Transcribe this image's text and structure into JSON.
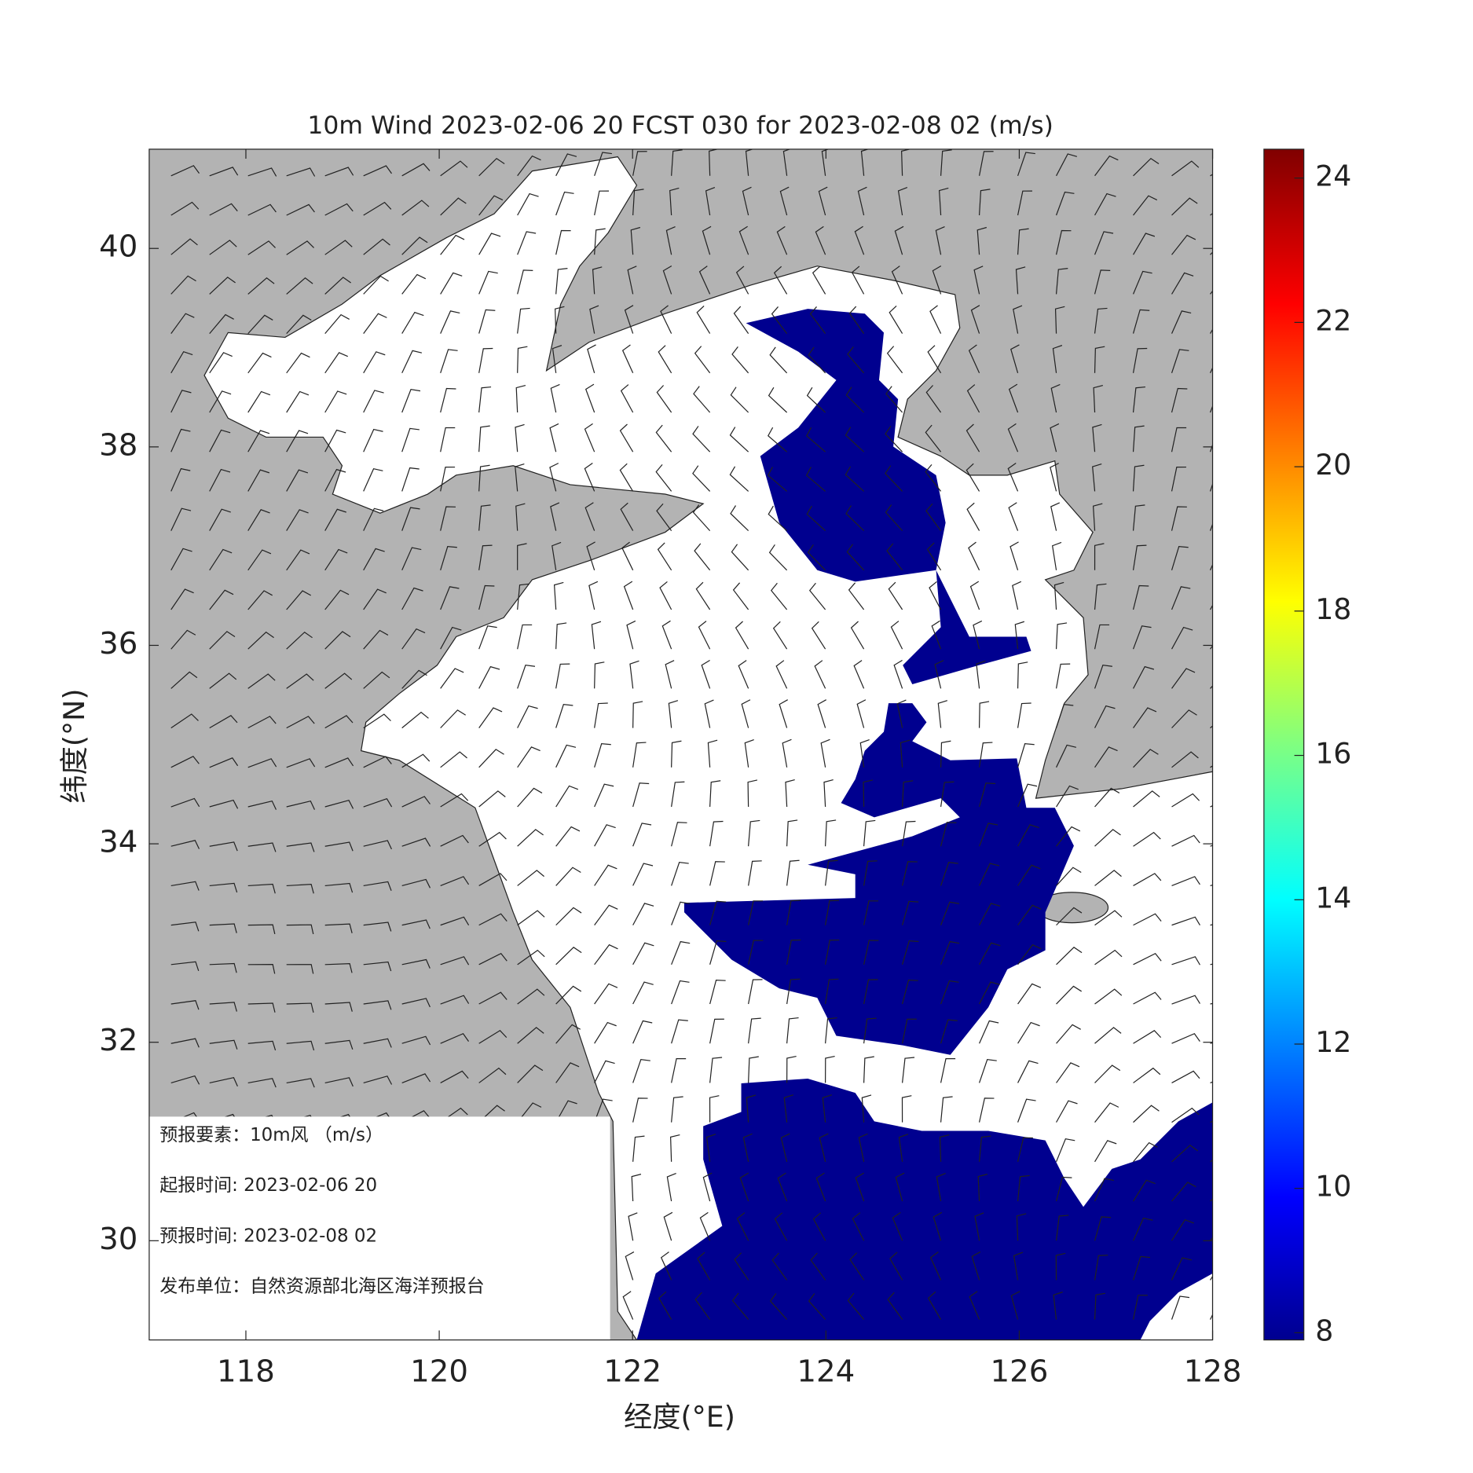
{
  "title": "10m Wind 2023-02-06 20 FCST 030 for 2023-02-08 02 (m/s)",
  "x_axis": {
    "label": "经度(°E)",
    "lim": [
      117,
      128
    ],
    "ticks": [
      118,
      120,
      122,
      124,
      126,
      128
    ]
  },
  "y_axis": {
    "label": "纬度(°N)",
    "lim": [
      29,
      41
    ],
    "ticks": [
      30,
      32,
      34,
      36,
      38,
      40
    ]
  },
  "colorbar": {
    "lim": [
      7.9,
      24.4
    ],
    "ticks": [
      8,
      10,
      12,
      14,
      16,
      18,
      20,
      22,
      24
    ]
  },
  "info": [
    "预报要素：10m风 （m/s）",
    "起报时间: 2023-02-06 20",
    "预报时间: 2023-02-08 02",
    "发布单位：自然资源部北海区海洋预报台"
  ]
}
